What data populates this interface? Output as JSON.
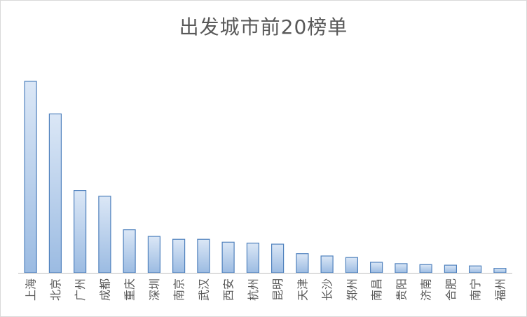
{
  "chart_data": {
    "type": "bar",
    "title": "出发城市前20榜单",
    "categories": [
      "上海",
      "北京",
      "广州",
      "成都",
      "重庆",
      "深圳",
      "南京",
      "武汉",
      "西安",
      "杭州",
      "昆明",
      "天津",
      "长沙",
      "郑州",
      "南昌",
      "贵阳",
      "济南",
      "合肥",
      "南宁",
      "福州"
    ],
    "values": [
      100,
      83,
      43,
      40,
      22.5,
      19,
      17.5,
      17.5,
      16,
      15.5,
      15,
      10,
      8.8,
      8,
      5.5,
      4.8,
      4.3,
      4,
      3.6,
      2.3
    ],
    "ylim": [
      0,
      100
    ],
    "xlabel": "",
    "ylabel": "",
    "grid": false,
    "legend": "none",
    "colors": {
      "bar_top": "#dbe7f6",
      "bar_bottom": "#9bbbe2",
      "bar_border": "#4f81bd",
      "axis": "#bfbfbf",
      "text": "#595959"
    }
  }
}
